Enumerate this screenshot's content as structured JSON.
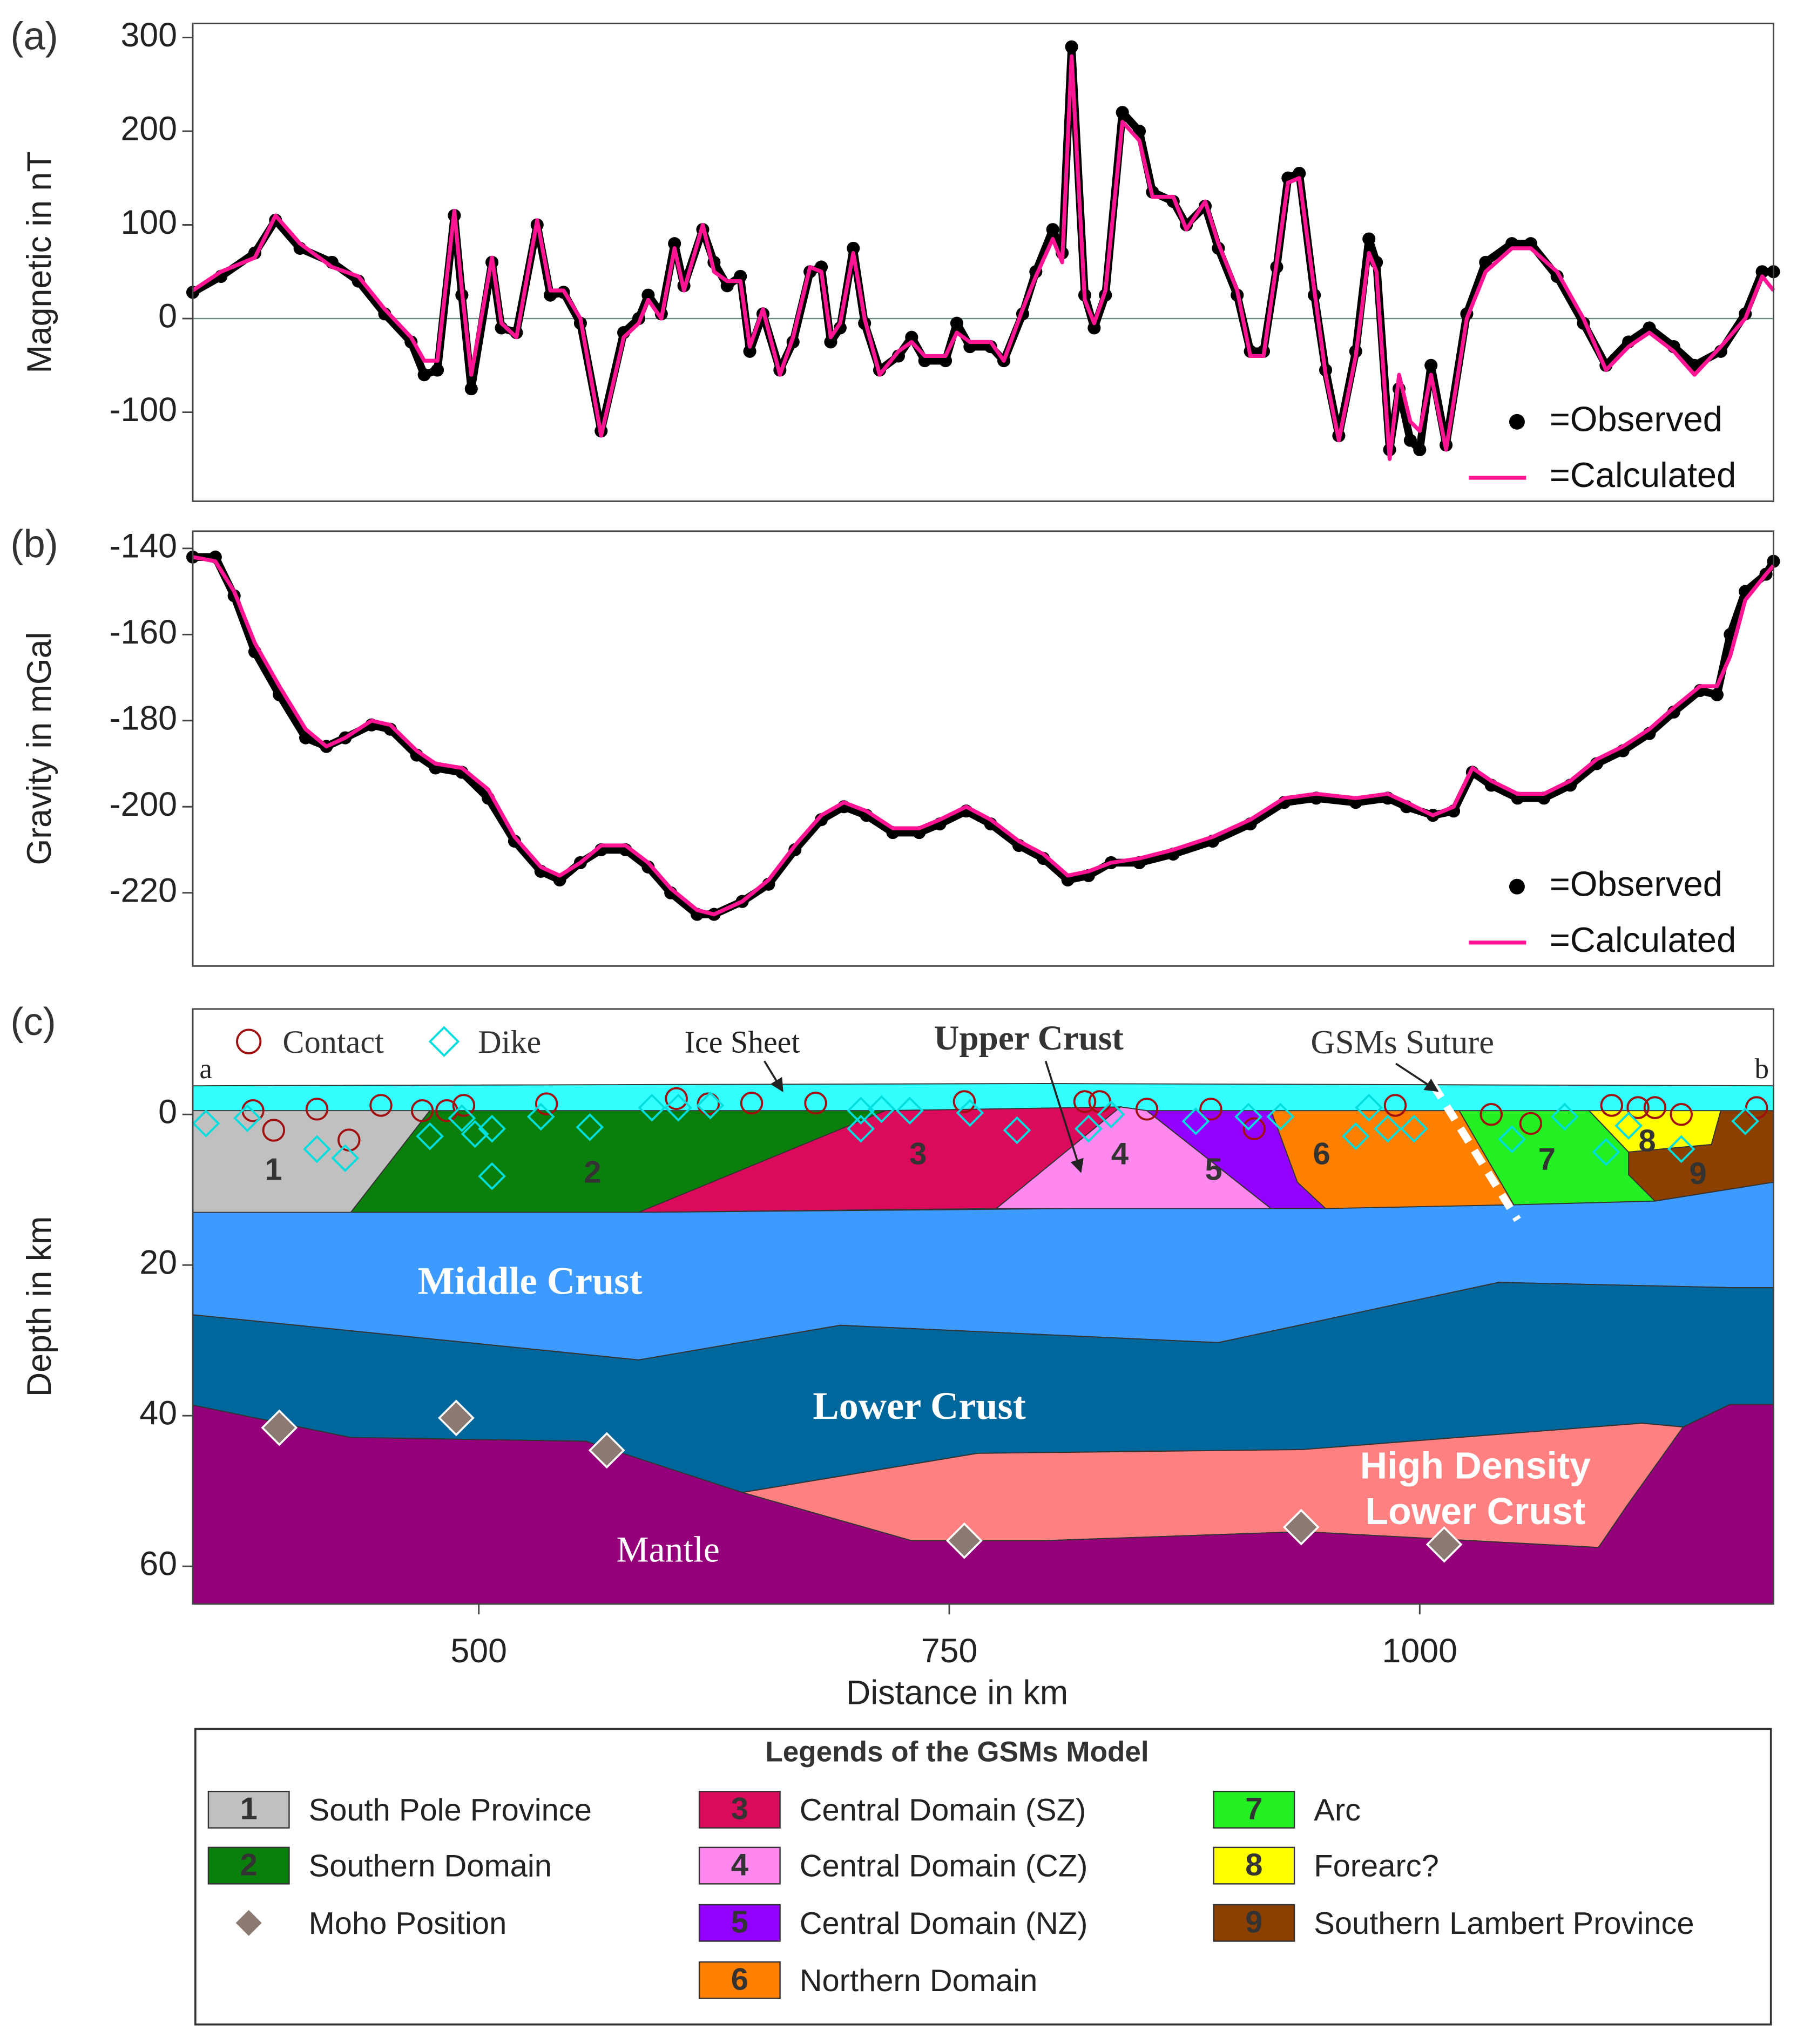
{
  "chart_data": [
    {
      "type": "line",
      "label": "(a)",
      "ylabel": "Magnetic in nT",
      "xlim": [
        348,
        1188
      ],
      "ylim": [
        -195,
        315
      ],
      "yticks": [
        -100,
        0,
        100,
        200,
        300
      ],
      "zero_line": true,
      "legend": "lower right",
      "x": [
        348,
        363,
        381,
        392,
        405,
        422,
        436,
        450,
        464,
        471,
        478,
        487,
        491,
        496,
        507,
        512,
        520,
        531,
        538,
        545,
        554,
        565,
        577,
        585,
        590,
        597,
        604,
        609,
        619,
        625,
        632,
        639,
        644,
        651,
        660,
        667,
        676,
        682,
        687,
        692,
        699,
        705,
        713,
        723,
        730,
        737,
        748,
        754,
        761,
        772,
        779,
        789,
        796,
        805,
        810,
        815,
        822,
        827,
        833,
        842,
        851,
        858,
        869,
        876,
        886,
        893,
        903,
        910,
        917,
        924,
        930,
        936,
        944,
        950,
        957,
        966,
        973,
        977,
        984,
        989,
        995,
        1000,
        1006,
        1014,
        1025,
        1035,
        1049,
        1059,
        1073,
        1087,
        1099,
        1111,
        1122,
        1135,
        1146,
        1160,
        1173,
        1182,
        1188
      ],
      "series": [
        {
          "name": "=Observed",
          "color": "#000000",
          "style": "markers",
          "values": [
            28,
            45,
            70,
            105,
            75,
            60,
            40,
            5,
            -25,
            -60,
            -55,
            110,
            25,
            -75,
            60,
            -10,
            -15,
            100,
            25,
            28,
            -5,
            -120,
            -15,
            0,
            25,
            5,
            80,
            35,
            95,
            60,
            35,
            45,
            -35,
            5,
            -55,
            -25,
            50,
            55,
            -25,
            -10,
            75,
            -5,
            -55,
            -40,
            -20,
            -45,
            -45,
            -5,
            -30,
            -30,
            -45,
            5,
            50,
            95,
            70,
            290,
            25,
            -10,
            25,
            220,
            200,
            135,
            125,
            100,
            120,
            75,
            25,
            -35,
            -35,
            55,
            150,
            155,
            25,
            -55,
            -125,
            -35,
            85,
            60,
            -140,
            -75,
            -130,
            -140,
            -50,
            -135,
            5,
            60,
            80,
            80,
            45,
            -5,
            -50,
            -25,
            -10,
            -30,
            -50,
            -35,
            5,
            50,
            50
          ]
        },
        {
          "name": "=Calculated",
          "color": "#ff1493",
          "style": "line",
          "values": [
            30,
            50,
            65,
            110,
            80,
            55,
            45,
            10,
            -20,
            -45,
            -45,
            115,
            30,
            -60,
            65,
            -5,
            -20,
            105,
            30,
            30,
            0,
            -125,
            -20,
            -5,
            20,
            0,
            75,
            30,
            100,
            50,
            40,
            40,
            -30,
            10,
            -60,
            -20,
            55,
            50,
            -20,
            -5,
            70,
            0,
            -60,
            -35,
            -25,
            -40,
            -40,
            -15,
            -25,
            -25,
            -45,
            10,
            45,
            85,
            60,
            280,
            20,
            -5,
            30,
            210,
            190,
            130,
            130,
            95,
            125,
            80,
            30,
            -40,
            -40,
            60,
            145,
            150,
            30,
            -60,
            -130,
            -40,
            70,
            50,
            -150,
            -60,
            -110,
            -120,
            -60,
            -140,
            0,
            50,
            75,
            75,
            50,
            0,
            -55,
            -30,
            -15,
            -35,
            -60,
            -30,
            0,
            45,
            30
          ]
        }
      ]
    },
    {
      "type": "line",
      "label": "(b)",
      "ylabel": "Gravity in mGal",
      "xlim": [
        348,
        1188
      ],
      "ylim": [
        -237,
        -136
      ],
      "yticks": [
        -220,
        -200,
        -180,
        -160,
        -140
      ],
      "zero_line": false,
      "legend": "lower right",
      "x": [
        348,
        360,
        370,
        381,
        394,
        408,
        419,
        429,
        443,
        453,
        467,
        477,
        491,
        505,
        519,
        533,
        543,
        554,
        565,
        578,
        590,
        602,
        616,
        625,
        640,
        654,
        668,
        682,
        694,
        706,
        720,
        734,
        745,
        759,
        772,
        787,
        800,
        813,
        824,
        836,
        851,
        869,
        890,
        910,
        928,
        945,
        966,
        983,
        993,
        1007,
        1018,
        1028,
        1038,
        1052,
        1066,
        1080,
        1094,
        1108,
        1122,
        1135,
        1149,
        1158,
        1165,
        1173,
        1184,
        1188
      ],
      "series": [
        {
          "name": "=Observed",
          "color": "#000000",
          "style": "markers",
          "values": [
            -142,
            -142,
            -151,
            -164,
            -174,
            -184,
            -186,
            -184,
            -181,
            -182,
            -188,
            -191,
            -192,
            -198,
            -208,
            -215,
            -217,
            -213,
            -210,
            -210,
            -214,
            -220,
            -225,
            -225,
            -222,
            -218,
            -210,
            -203,
            -200,
            -202,
            -206,
            -206,
            -204,
            -201,
            -204,
            -209,
            -212,
            -217,
            -216,
            -213,
            -213,
            -211,
            -208,
            -204,
            -199,
            -198,
            -199,
            -198,
            -200,
            -202,
            -201,
            -192,
            -195,
            -198,
            -198,
            -195,
            -190,
            -187,
            -183,
            -178,
            -173,
            -174,
            -160,
            -150,
            -146,
            -143
          ]
        },
        {
          "name": "=Calculated",
          "color": "#ff1493",
          "style": "line",
          "values": [
            -142,
            -143,
            -150,
            -162,
            -172,
            -182,
            -186,
            -184,
            -180,
            -181,
            -187,
            -190,
            -191,
            -196,
            -207,
            -214,
            -216,
            -213,
            -209,
            -209,
            -213,
            -219,
            -224,
            -225,
            -222,
            -217,
            -209,
            -202,
            -199,
            -201,
            -205,
            -205,
            -203,
            -200,
            -203,
            -208,
            -211,
            -216,
            -215,
            -213,
            -212,
            -210,
            -207,
            -203,
            -198,
            -197,
            -198,
            -197,
            -199,
            -202,
            -200,
            -191,
            -194,
            -197,
            -197,
            -194,
            -189,
            -186,
            -182,
            -177,
            -172,
            -172,
            -165,
            -152,
            -146,
            -144
          ]
        }
      ]
    },
    {
      "type": "section",
      "label": "(c)",
      "xlabel": "Distance in km",
      "ylabel": "Depth in km",
      "xlim": [
        348,
        1188
      ],
      "ylim": [
        65,
        -14
      ],
      "xticks": [
        500,
        750,
        1000
      ],
      "yticks": [
        0,
        20,
        40,
        60
      ],
      "profile_ends": [
        "a",
        "b"
      ],
      "annotation": "Upper Crust",
      "layers": [
        {
          "name": "Ice Sheet",
          "color": "#33ffff",
          "x": [
            348,
            800,
            1188,
            1188,
            348
          ],
          "depth": [
            -3.8,
            -4.1,
            -3.8,
            0.5,
            0.5
          ]
        },
        {
          "name": "Middle Crust",
          "color": "#3d9bff",
          "x": [
            348,
            585,
            1050,
            1125,
            1188,
            1188,
            1166,
            1042,
            893,
            692,
            585,
            348
          ],
          "depth": [
            13,
            13,
            12,
            11.5,
            9,
            23,
            23,
            22.3,
            30.3,
            28,
            32.6,
            26.6
          ]
        },
        {
          "name": "Lower Crust",
          "color": "#00679c",
          "x": [
            348,
            585,
            692,
            893,
            1042,
            1166,
            1188,
            1188,
            1165,
            1140,
            1118,
            938,
            765,
            640,
            557,
            432,
            348
          ],
          "depth": [
            26.6,
            32.6,
            28,
            30.3,
            22.3,
            23,
            23,
            38.5,
            38.5,
            41.5,
            41,
            44.5,
            45,
            50.2,
            43.4,
            42.9,
            38.6
          ]
        },
        {
          "label_lines": [
            "High Density",
            "Lower Crust"
          ],
          "color": "#ff8080",
          "x": [
            640,
            765,
            938,
            1118,
            1140,
            1110,
            1095,
            938,
            800,
            730
          ],
          "depth": [
            50.2,
            45,
            44.5,
            41,
            41.5,
            52,
            57.5,
            55.4,
            56.6,
            56.6
          ]
        },
        {
          "name": "Mantle",
          "color": "#95007a",
          "x": [
            348,
            432,
            557,
            640,
            730,
            800,
            938,
            1095,
            1110,
            1140,
            1165,
            1188,
            1188,
            348
          ],
          "depth": [
            38.6,
            42.9,
            43.4,
            50.2,
            56.6,
            56.6,
            55.4,
            57.5,
            52,
            41.5,
            38.5,
            38.5,
            65,
            65
          ]
        }
      ],
      "units": [
        {
          "label": "1",
          "name": "South Pole Province",
          "color": "#c0c0c0",
          "x": [
            348,
            474,
            432,
            348
          ],
          "depth": [
            -0.5,
            -0.5,
            13,
            13
          ]
        },
        {
          "label": "2",
          "name": "Southern Domain",
          "color": "#0b7f0b",
          "x": [
            474,
            716,
            585,
            432
          ],
          "depth": [
            -0.5,
            -0.5,
            13,
            13
          ]
        },
        {
          "label": "3",
          "name": "Central Domain (SZ)",
          "color": "#dc0a5a",
          "x": [
            716,
            841,
            775,
            585
          ],
          "depth": [
            -0.5,
            -1,
            12.5,
            13
          ]
        },
        {
          "label": "4",
          "name": "Central Domain (CZ)",
          "color": "#ff88ee",
          "x": [
            841,
            855,
            921,
            775
          ],
          "depth": [
            -1,
            -0.5,
            12.5,
            12.5
          ]
        },
        {
          "label": "5",
          "name": "Central Domain (NZ)",
          "color": "#9400ff",
          "x": [
            855,
            921,
            935,
            950,
            921
          ],
          "depth": [
            -0.5,
            -0.5,
            9,
            12.5,
            12.5
          ]
        },
        {
          "label": "6",
          "name": "Northern Domain",
          "color": "#ff8000",
          "x": [
            921,
            1021,
            1050,
            950,
            935
          ],
          "depth": [
            -0.5,
            -0.5,
            12,
            12.5,
            9
          ]
        },
        {
          "label": "7",
          "name": "Arc",
          "color": "#22f022",
          "x": [
            1021,
            1090,
            1111,
            1111,
            1125,
            1050
          ],
          "depth": [
            -0.5,
            -0.5,
            5,
            8,
            11.5,
            12
          ]
        },
        {
          "label": "8",
          "name": "Forearc?",
          "color": "#ffff00",
          "x": [
            1090,
            1160,
            1155,
            1111
          ],
          "depth": [
            -0.5,
            -0.5,
            4,
            5
          ]
        },
        {
          "label": "9",
          "name": "Southern Lambert Province",
          "color": "#8b4000",
          "x": [
            1160,
            1188,
            1188,
            1125,
            1111,
            1111,
            1155
          ],
          "depth": [
            -0.5,
            -0.5,
            9,
            11.5,
            8,
            5,
            4
          ]
        }
      ],
      "suture": {
        "label": "GSMs Suture",
        "x": [
          1007,
          1052
        ],
        "depth": [
          -4,
          14
        ]
      },
      "points": [
        {
          "name": "Contact",
          "color": "#a01010",
          "marker": "circle",
          "x": [
            380,
            391,
            414,
            431,
            448,
            470,
            483,
            492,
            536,
            605,
            622,
            645,
            679,
            758,
            822,
            830,
            855,
            889,
            912,
            987,
            1038,
            1059,
            1102,
            1116,
            1125,
            1139,
            1179
          ],
          "depth": [
            -0.5,
            2.1,
            -0.7,
            3.4,
            -1.2,
            -0.5,
            -0.5,
            -1.2,
            -1.4,
            -2.1,
            -1.4,
            -1.5,
            -1.5,
            -1.7,
            -1.7,
            -1.7,
            -0.7,
            -0.7,
            1.9,
            -1.2,
            0,
            1.2,
            -1.2,
            -0.9,
            -0.9,
            0,
            -0.9
          ]
        },
        {
          "name": "Dike",
          "color": "#00dede",
          "marker": "diamond",
          "x": [
            355,
            377,
            414,
            429,
            474,
            491,
            498,
            507,
            507,
            533,
            559,
            592,
            606,
            623,
            703,
            703,
            714,
            729,
            761,
            786,
            824,
            836,
            881,
            909,
            926,
            966,
            973,
            983,
            997,
            1049,
            1077,
            1099,
            1111,
            1139,
            1173
          ],
          "depth": [
            1.2,
            0.5,
            4.6,
            5.8,
            2.9,
            0.5,
            2.6,
            1.9,
            8.2,
            0.3,
            1.7,
            -0.9,
            -0.9,
            -1.2,
            1.9,
            -0.5,
            -0.7,
            -0.5,
            -0.2,
            2.1,
            1.9,
            0,
            0.9,
            0.3,
            0.3,
            2.9,
            -0.9,
            1.9,
            1.9,
            3.3,
            0.3,
            5.0,
            1.5,
            4.6,
            0.9
          ]
        }
      ],
      "moho": {
        "name": "Moho Position",
        "color": "#8a7a72",
        "x": [
          394,
          488,
          568,
          758,
          937,
          1013
        ],
        "depth": [
          41.6,
          40.3,
          44.6,
          56.6,
          54.8,
          57.1
        ]
      },
      "legend_title": "Legends of the GSMs Model"
    }
  ]
}
